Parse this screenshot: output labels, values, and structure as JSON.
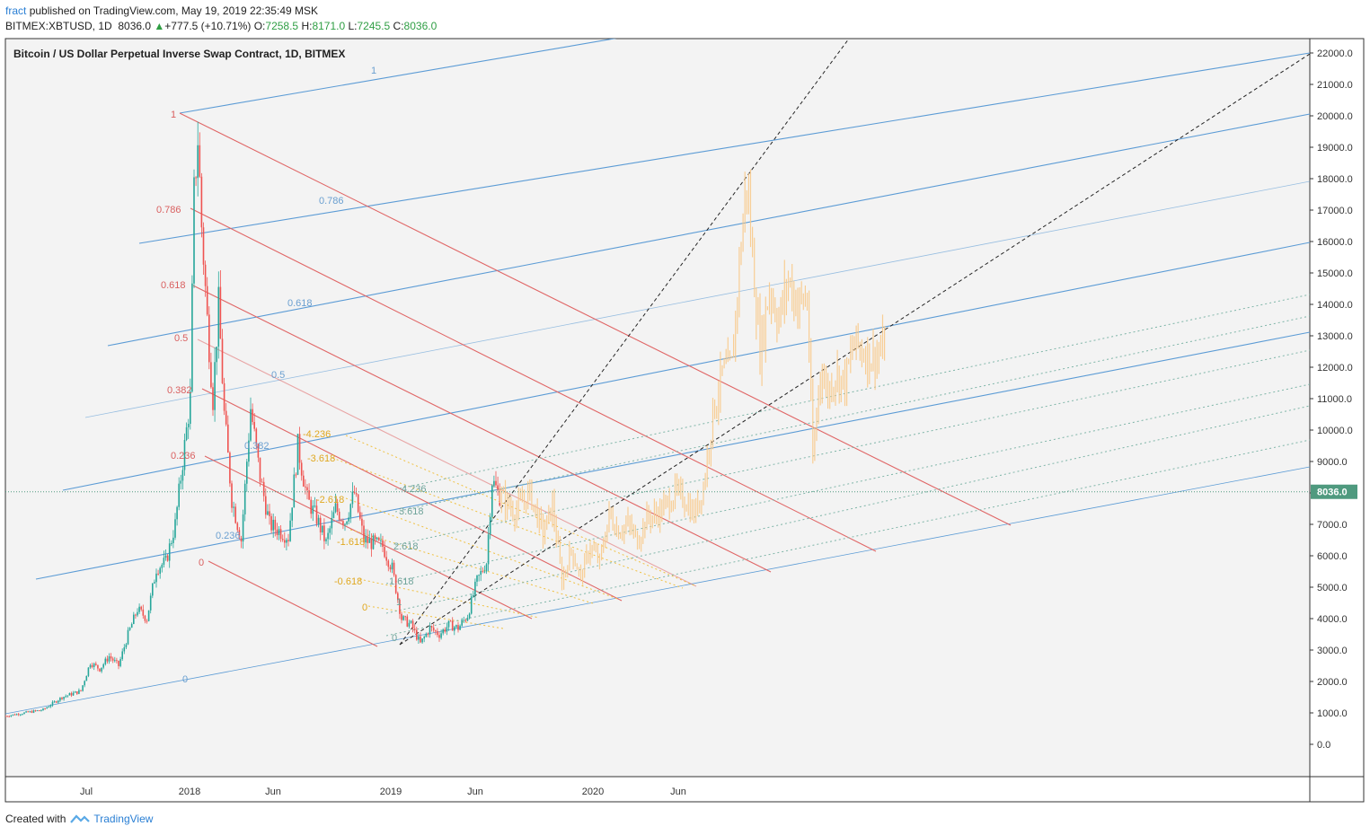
{
  "header": {
    "user": "fract",
    "published_text": "published on TradingView.com, May 19, 2019 22:35:49 MSK",
    "symbol": "BITMEX:XBTUSD, 1D",
    "last": "8036.0",
    "change_arrow": "▲",
    "change": "+777.5 (+10.71%)",
    "o_label": "O:",
    "o_value": "7258.5",
    "h_label": "H:",
    "h_value": "8171.0",
    "l_label": "L:",
    "l_value": "7245.5",
    "c_label": "C:",
    "c_value": "8036.0"
  },
  "footer": {
    "created_with": "Created with",
    "brand": "TradingView",
    "logo_icon": "tradingview-logo-icon"
  },
  "chart_data": {
    "type": "candlestick",
    "title": "Bitcoin / US Dollar Perpetual Inverse Swap Contract, 1D, BITMEX",
    "y_range": [
      -1000,
      22400
    ],
    "y_ticks": [
      "22000.0",
      "21000.0",
      "20000.0",
      "19000.0",
      "18000.0",
      "17000.0",
      "16000.0",
      "15000.0",
      "14000.0",
      "13000.0",
      "12000.0",
      "11000.0",
      "10000.0",
      "9000.0",
      "8000.0",
      "7000.0",
      "6000.0",
      "5000.0",
      "4000.0",
      "3000.0",
      "2000.0",
      "1000.0",
      "0.0"
    ],
    "x_ticks": [
      "Jul",
      "2018",
      "Jun",
      "2019",
      "Jun",
      "2020",
      "Jun"
    ],
    "last_price_label": "8036.0",
    "last_price": 8036,
    "colors": {
      "up": "#26a69a",
      "down": "#ef5350",
      "projection": "#f9c98a",
      "blue_line": "#5b9bd5",
      "red_line": "#e06666",
      "yellow_dotted": "#f0c040",
      "green_dotted": "#7fb5a8",
      "dashed": "#222222",
      "last_price_badge": "#4f9a7f"
    },
    "blue_fib_levels": [
      "1",
      "0.786",
      "0.618",
      "0.5",
      "0.382",
      "0.236",
      "0"
    ],
    "red_fib_levels": [
      "1",
      "0.786",
      "0.618",
      "0.5",
      "0.382",
      "0.236",
      "0"
    ],
    "yellow_ext_levels": [
      "-4.236",
      "-3.618",
      "-2.618",
      "-1.618",
      "-0.618",
      "0"
    ],
    "green_ext_levels": [
      "4.236",
      "3.618",
      "2.618",
      "1.618",
      "1",
      "0"
    ],
    "price_path": [
      [
        0,
        900
      ],
      [
        10,
        1000
      ],
      [
        20,
        1100
      ],
      [
        30,
        1500
      ],
      [
        40,
        1700
      ],
      [
        45,
        2600
      ],
      [
        50,
        2400
      ],
      [
        55,
        2800
      ],
      [
        60,
        2500
      ],
      [
        65,
        3500
      ],
      [
        70,
        4300
      ],
      [
        75,
        4000
      ],
      [
        80,
        5600
      ],
      [
        85,
        5800
      ],
      [
        90,
        7000
      ],
      [
        95,
        9500
      ],
      [
        98,
        11000
      ],
      [
        100,
        17500
      ],
      [
        102,
        19300
      ],
      [
        104,
        16500
      ],
      [
        107,
        13500
      ],
      [
        110,
        11000
      ],
      [
        113,
        14000
      ],
      [
        116,
        10500
      ],
      [
        120,
        7800
      ],
      [
        125,
        6500
      ],
      [
        130,
        10700
      ],
      [
        135,
        8500
      ],
      [
        140,
        7000
      ],
      [
        145,
        6800
      ],
      [
        150,
        6600
      ],
      [
        155,
        9500
      ],
      [
        160,
        7800
      ],
      [
        165,
        7200
      ],
      [
        170,
        6400
      ],
      [
        175,
        7500
      ],
      [
        180,
        7100
      ],
      [
        185,
        8000
      ],
      [
        190,
        6500
      ],
      [
        195,
        6400
      ],
      [
        200,
        6300
      ],
      [
        205,
        5600
      ],
      [
        210,
        4000
      ],
      [
        215,
        3800
      ],
      [
        220,
        3200
      ],
      [
        225,
        3700
      ],
      [
        230,
        3500
      ],
      [
        235,
        3800
      ],
      [
        240,
        3700
      ],
      [
        245,
        4100
      ],
      [
        250,
        5200
      ],
      [
        255,
        5800
      ],
      [
        258,
        8400
      ],
      [
        262,
        7900
      ]
    ],
    "projection_path": [
      [
        262,
        7900
      ],
      [
        270,
        7400
      ],
      [
        278,
        8000
      ],
      [
        285,
        6700
      ],
      [
        290,
        7600
      ],
      [
        295,
        5200
      ],
      [
        300,
        6200
      ],
      [
        305,
        5300
      ],
      [
        310,
        6300
      ],
      [
        315,
        5800
      ],
      [
        320,
        7300
      ],
      [
        325,
        6800
      ],
      [
        330,
        7000
      ],
      [
        335,
        6500
      ],
      [
        340,
        7200
      ],
      [
        345,
        7300
      ],
      [
        350,
        7600
      ],
      [
        355,
        8000
      ],
      [
        360,
        7800
      ],
      [
        365,
        7300
      ],
      [
        370,
        8200
      ],
      [
        375,
        10500
      ],
      [
        380,
        11800
      ],
      [
        385,
        12000
      ],
      [
        390,
        16000
      ],
      [
        393,
        18000
      ],
      [
        396,
        15500
      ],
      [
        400,
        12500
      ],
      [
        405,
        14500
      ],
      [
        410,
        13500
      ],
      [
        415,
        14800
      ],
      [
        420,
        14000
      ],
      [
        425,
        14200
      ],
      [
        428,
        9000
      ],
      [
        432,
        12000
      ],
      [
        436,
        11200
      ],
      [
        440,
        11800
      ],
      [
        445,
        11500
      ],
      [
        450,
        12800
      ],
      [
        455,
        12500
      ],
      [
        460,
        12300
      ],
      [
        466,
        12600
      ]
    ]
  }
}
